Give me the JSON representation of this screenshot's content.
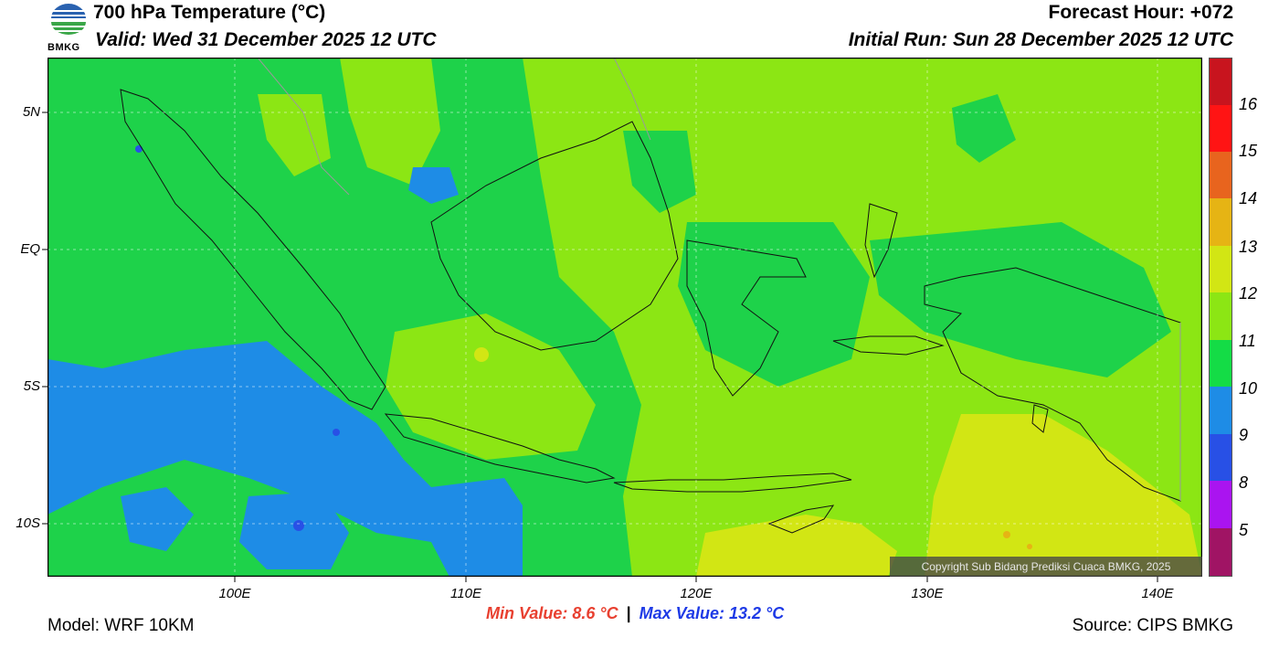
{
  "header": {
    "title": "700 hPa Temperature (°C)",
    "valid": "Valid: Wed 31 December 2025 12 UTC",
    "forecast_hour": "Forecast Hour: +072",
    "initial_run": "Initial Run: Sun 28 December 2025 12 UTC"
  },
  "logo": {
    "text": "BMKG",
    "colors": {
      "blue": "#2a62b0",
      "green": "#3aa648"
    }
  },
  "axes": {
    "lat_labels": [
      "5N",
      "EQ",
      "5S",
      "10S"
    ],
    "lon_labels": [
      "100E",
      "110E",
      "120E",
      "130E",
      "140E"
    ]
  },
  "colorbar": {
    "labels": [
      "16",
      "15",
      "14",
      "13",
      "12",
      "11",
      "10",
      "9",
      "8",
      "5"
    ],
    "colors": [
      "#c8141e",
      "#ff1414",
      "#e8641e",
      "#e6b414",
      "#d2e614",
      "#8ce614",
      "#14dc46",
      "#1e8ce6",
      "#2850e6",
      "#aa14f0",
      "#a01464"
    ]
  },
  "map_colors": {
    "green": "#1ed24a",
    "lightgreen": "#8ce614",
    "yellow": "#d2e614",
    "blue": "#1e8ce6",
    "darkblue": "#2850e6",
    "orange": "#e6b414"
  },
  "stats": {
    "min_value": "Min Value: 8.6 °C",
    "separator": "|",
    "max_value": "Max Value: 13.2 °C"
  },
  "copyright": "Copyright Sub Bidang Prediksi Cuaca BMKG, 2025",
  "footer": {
    "model": "Model: WRF 10KM",
    "source": "Source: CIPS BMKG"
  }
}
